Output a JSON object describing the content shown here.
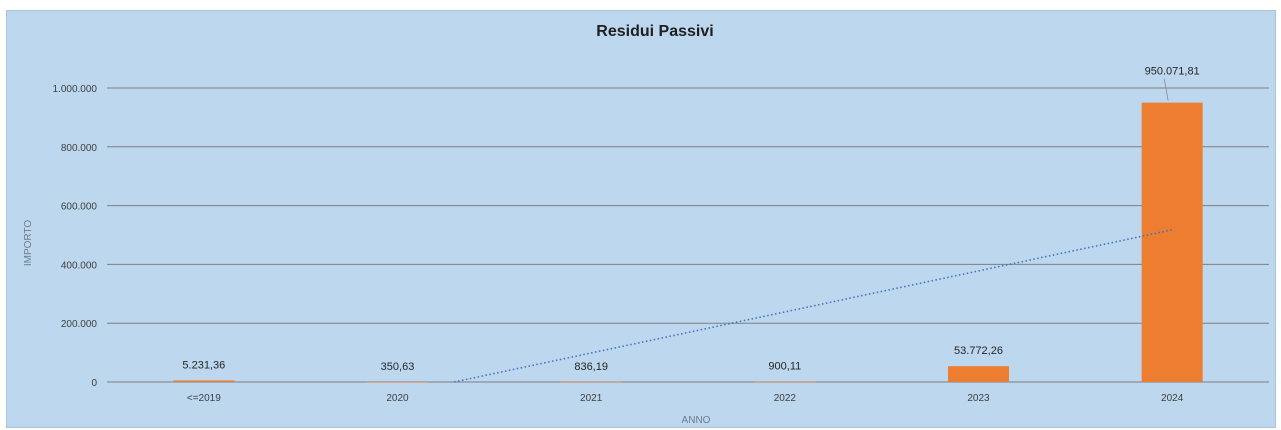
{
  "chart_data": {
    "type": "bar",
    "title": "Residui Passivi",
    "xlabel": "ANNO",
    "ylabel": "IMPORTO",
    "categories": [
      "<=2019",
      "2020",
      "2021",
      "2022",
      "2023",
      "2024"
    ],
    "values": [
      5231.36,
      350.63,
      836.19,
      900.11,
      53772.26,
      950071.81
    ],
    "data_labels": [
      "5.231,36",
      "350,63",
      "836,19",
      "900,11",
      "53.772,26",
      "950.071,81"
    ],
    "ylim": [
      0,
      1000000
    ],
    "yticks": [
      0,
      200000,
      400000,
      600000,
      800000,
      1000000
    ],
    "ytick_labels": [
      "0",
      "200.000",
      "400.000",
      "600.000",
      "800.000",
      "1.000.000"
    ],
    "grid": true,
    "trendline": "linear",
    "colors": {
      "bar": "#ed7d31",
      "background": "#bdd7ee",
      "grid": "#7f7f7f",
      "trendline": "#4472c4"
    }
  }
}
